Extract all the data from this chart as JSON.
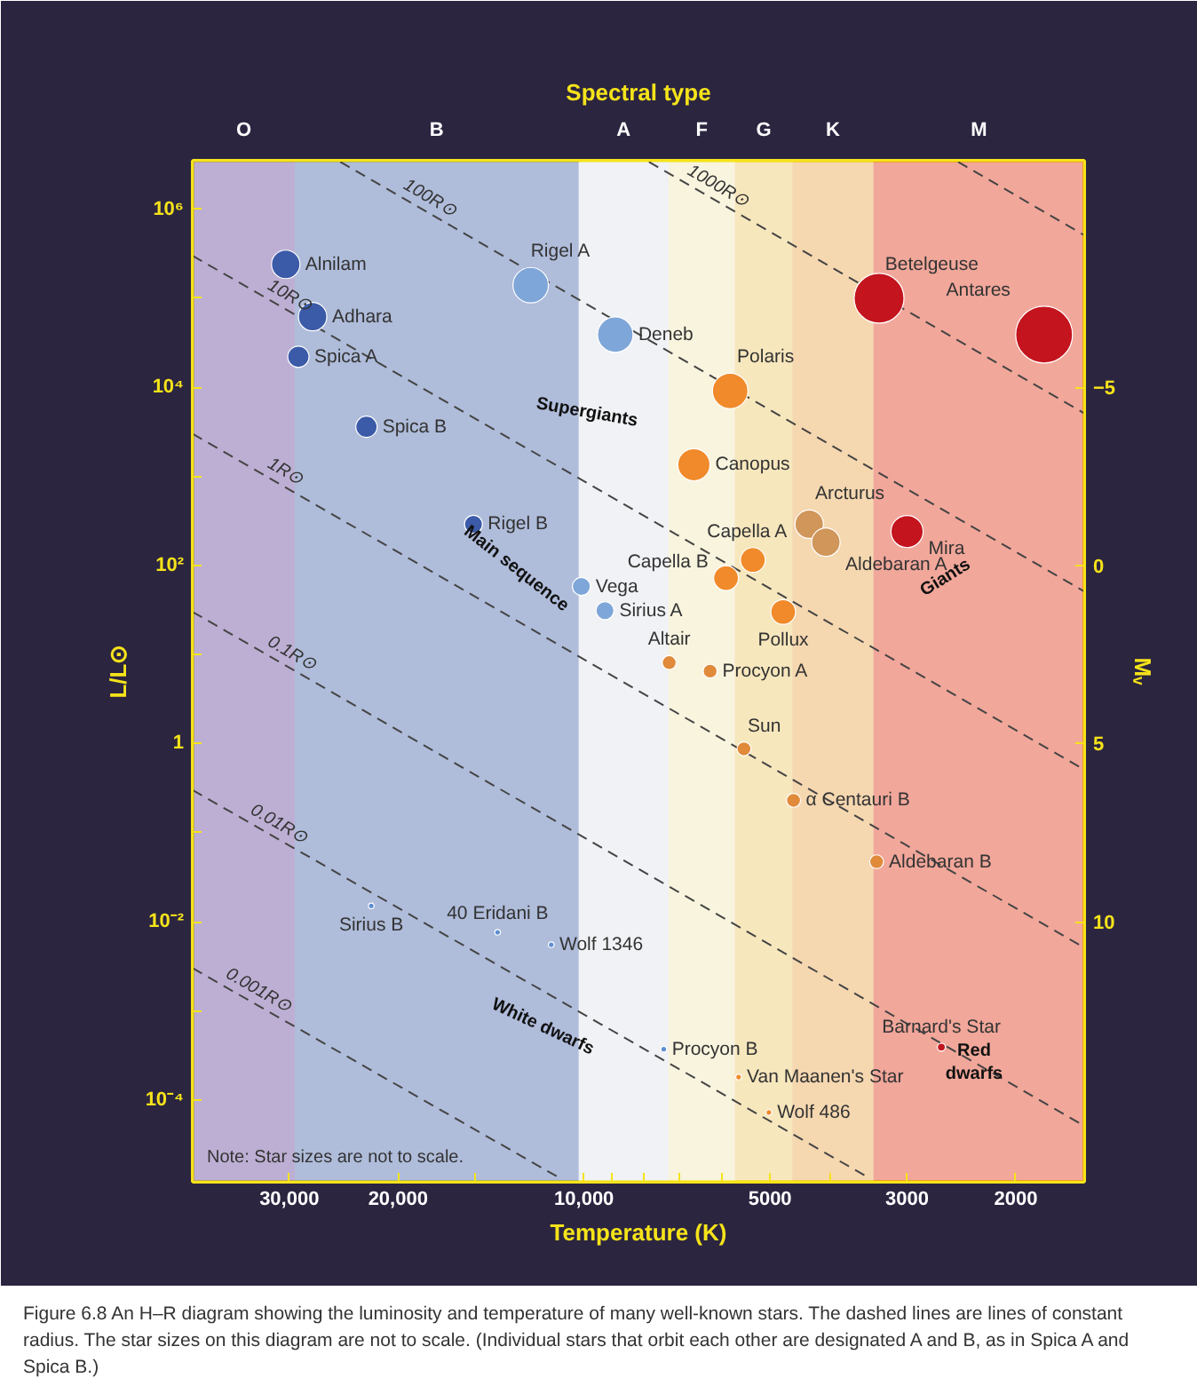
{
  "chart_data": {
    "type": "bubble",
    "x2label": "Spectral type",
    "xlabel": "Temperature (K)",
    "ylabel": "L/L⊙",
    "y2label": "Mᵥ",
    "xlim": [
      43000,
      1550
    ],
    "ylim": [
      1.2e-05,
      3500000.0
    ],
    "y2lim": [
      17.3,
      -11.36
    ],
    "log": "xy",
    "xticks": [
      {
        "value": 30000,
        "label": "30,000"
      },
      {
        "value": 20000,
        "label": "20,000"
      },
      {
        "value": 15000,
        "label": null
      },
      {
        "value": 10000,
        "label": "10,000"
      },
      {
        "value": 9000,
        "label": null
      },
      {
        "value": 8000,
        "label": null
      },
      {
        "value": 7000,
        "label": null
      },
      {
        "value": 6000,
        "label": null
      },
      5000,
      {
        "value": 4000,
        "label": null
      },
      3000,
      2000
    ],
    "yticks": [
      {
        "value": 1000000.0,
        "label": "10⁶"
      },
      {
        "value": 100000.0,
        "label": null
      },
      {
        "value": 10000.0,
        "label": "10⁴"
      },
      {
        "value": 1000.0,
        "label": null
      },
      {
        "value": 100,
        "label": "10²"
      },
      {
        "value": 10,
        "label": null
      },
      1,
      {
        "value": 0.1,
        "label": null
      },
      {
        "value": 0.01,
        "label": "10⁻²"
      },
      {
        "value": 0.001,
        "label": null
      },
      {
        "value": 0.0001,
        "label": "10⁻⁴"
      }
    ],
    "y2ticks": [
      {
        "value": -5,
        "label": "−5"
      },
      0,
      5,
      10
    ],
    "bands": [
      {
        "axis": "x",
        "from": 43000,
        "to": 29400,
        "label": "O",
        "color": "#7a5ca8"
      },
      {
        "axis": "x",
        "from": 29400,
        "to": 10200,
        "label": "B",
        "color": "#5b78b8"
      },
      {
        "axis": "x",
        "from": 10200,
        "to": 7300,
        "label": "A",
        "color": "#eef0f4"
      },
      {
        "axis": "x",
        "from": 7300,
        "to": 5700,
        "label": "F",
        "color": "#fdf3c0"
      },
      {
        "axis": "x",
        "from": 5700,
        "to": 4600,
        "label": "G",
        "color": "#fbd878"
      },
      {
        "axis": "x",
        "from": 4600,
        "to": 3400,
        "label": "K",
        "color": "#f7b45a"
      },
      {
        "axis": "x",
        "from": 3400,
        "to": 1550,
        "label": "M",
        "color": "#ee4a2a"
      }
    ],
    "line_style": "dashed",
    "marker": "circle",
    "grid": false,
    "series": [
      {
        "type": "line",
        "marker": "none",
        "name": "1000R⊙",
        "color": "#444444",
        "x": [
          7850,
          1550
        ],
        "values": [
          3400000.0,
          5100
        ]
      },
      {
        "type": "line",
        "marker": "none",
        "name": "100R⊙",
        "color": "#444444",
        "x": [
          24800,
          1550
        ],
        "values": [
          3400000.0,
          51
        ]
      },
      {
        "type": "line",
        "marker": "none",
        "color": "#444444",
        "x": [
          2480,
          1550
        ],
        "values": [
          3400000.0,
          510000.0
        ]
      },
      {
        "type": "line",
        "marker": "none",
        "name": "10R⊙",
        "color": "#444444",
        "x": [
          43000,
          1550
        ],
        "values": [
          300000.0,
          0.51
        ]
      },
      {
        "type": "line",
        "marker": "none",
        "name": "1R⊙",
        "color": "#444444",
        "x": [
          43000,
          1550
        ],
        "values": [
          3000,
          0.0051
        ]
      },
      {
        "type": "line",
        "marker": "none",
        "name": "0.1R⊙",
        "color": "#444444",
        "x": [
          43000,
          1550
        ],
        "values": [
          30,
          5.1e-05
        ]
      },
      {
        "type": "line",
        "marker": "none",
        "name": "0.01R⊙",
        "color": "#444444",
        "x": [
          43000,
          3440
        ],
        "values": [
          0.3,
          1.3e-05
        ]
      },
      {
        "type": "line",
        "marker": "none",
        "name": "0.001R⊙",
        "color": "#444444",
        "x": [
          43000,
          10900
        ],
        "values": [
          0.003,
          1.3e-05
        ]
      },
      {
        "name": "Alnilam",
        "color": "#3b5aa8",
        "x": [
          30400
        ],
        "values": [
          240000.0
        ],
        "sizes": [
          0.25
        ]
      },
      {
        "name": "Adhara",
        "color": "#3b5aa8",
        "x": [
          27500
        ],
        "values": [
          62000.0
        ],
        "sizes": [
          0.25
        ]
      },
      {
        "name": "Spica A",
        "color": "#3b5aa8",
        "x": [
          29000
        ],
        "values": [
          22000.0
        ],
        "sizes": [
          0.14
        ]
      },
      {
        "name": "Spica B",
        "color": "#3b5aa8",
        "x": [
          22500
        ],
        "values": [
          3600
        ],
        "sizes": [
          0.14
        ]
      },
      {
        "name": "Rigel A",
        "color": "#7fa6d8",
        "x": [
          12200
        ],
        "values": [
          140000.0
        ],
        "sizes": [
          0.39
        ]
      },
      {
        "name": "Deneb",
        "color": "#7fa6d8",
        "x": [
          8900
        ],
        "values": [
          39000.0
        ],
        "sizes": [
          0.39
        ]
      },
      {
        "name": "Betelgeuse",
        "color": "#c4141e",
        "x": [
          3330
        ],
        "values": [
          100000.0
        ],
        "sizes": [
          0.77
        ]
      },
      {
        "name": "Antares",
        "color": "#c4141e",
        "x": [
          1800
        ],
        "values": [
          39000.0
        ],
        "sizes": [
          1
        ]
      },
      {
        "name": "Polaris",
        "color": "#f08a2a",
        "x": [
          5800
        ],
        "values": [
          9100
        ],
        "sizes": [
          0.39
        ]
      },
      {
        "name": "Canopus",
        "color": "#f08a2a",
        "x": [
          6640
        ],
        "values": [
          1350
        ],
        "sizes": [
          0.32
        ]
      },
      {
        "name": "Rigel B",
        "color": "#3b5aa8",
        "x": [
          15100
        ],
        "values": [
          290
        ],
        "sizes": [
          0.1
        ]
      },
      {
        "name": "Arcturus",
        "color": "#d0965a",
        "x": [
          4320
        ],
        "values": [
          290
        ],
        "sizes": [
          0.25
        ]
      },
      {
        "name": "Aldebaran A",
        "color": "#d0965a",
        "x": [
          4060
        ],
        "values": [
          182
        ],
        "sizes": [
          0.25
        ]
      },
      {
        "name": "Mira",
        "color": "#c4141e",
        "x": [
          3000
        ],
        "values": [
          240
        ],
        "sizes": [
          0.32
        ]
      },
      {
        "name": "Capella A",
        "color": "#f08a2a",
        "x": [
          5330
        ],
        "values": [
          115
        ],
        "sizes": [
          0.19
        ]
      },
      {
        "name": "Capella B",
        "color": "#f08a2a",
        "x": [
          5890
        ],
        "values": [
          72
        ],
        "sizes": [
          0.19
        ]
      },
      {
        "name": "Vega",
        "color": "#7fa6d8",
        "x": [
          10100
        ],
        "values": [
          58
        ],
        "sizes": [
          0.1
        ]
      },
      {
        "name": "Sirius A",
        "color": "#7fa6d8",
        "x": [
          9250
        ],
        "values": [
          31
        ],
        "sizes": [
          0.1
        ]
      },
      {
        "name": "Pollux",
        "color": "#f08a2a",
        "x": [
          4760
        ],
        "values": [
          30
        ],
        "sizes": [
          0.19
        ]
      },
      {
        "name": "Altair",
        "color": "#e08a3a",
        "x": [
          7280
        ],
        "values": [
          8.1
        ],
        "sizes": [
          0.06
        ]
      },
      {
        "name": "Procyon A",
        "color": "#e08a3a",
        "x": [
          6250
        ],
        "values": [
          6.5
        ],
        "sizes": [
          0.06
        ]
      },
      {
        "name": "Sun",
        "color": "#e08a3a",
        "x": [
          5510
        ],
        "values": [
          0.87
        ],
        "sizes": [
          0.06
        ]
      },
      {
        "name": "α Centauri B",
        "color": "#e08a3a",
        "x": [
          4580
        ],
        "values": [
          0.23
        ],
        "sizes": [
          0.06
        ]
      },
      {
        "name": "Aldebaran B",
        "color": "#e08a3a",
        "x": [
          3360
        ],
        "values": [
          0.047
        ],
        "sizes": [
          0.06
        ]
      },
      {
        "name": "Sirius B",
        "color": "#5f8fd0",
        "x": [
          22100
        ],
        "values": [
          0.015
        ],
        "sizes": [
          0.01
        ]
      },
      {
        "name": "40 Eridani B",
        "color": "#5f8fd0",
        "x": [
          13800
        ],
        "values": [
          0.0076
        ],
        "sizes": [
          0.01
        ]
      },
      {
        "name": "Wolf 1346",
        "color": "#5f8fd0",
        "x": [
          11300
        ],
        "values": [
          0.0055
        ],
        "sizes": [
          0.01
        ]
      },
      {
        "name": "Procyon B",
        "color": "#5f8fd0",
        "x": [
          7430
        ],
        "values": [
          0.00037
        ],
        "sizes": [
          0.01
        ]
      },
      {
        "name": "Van Maanen's Star",
        "color": "#f08a2a",
        "x": [
          5620
        ],
        "values": [
          0.00018
        ],
        "sizes": [
          0.01
        ]
      },
      {
        "name": "Wolf 486",
        "color": "#f08a2a",
        "x": [
          5020
        ],
        "values": [
          7.2e-05
        ],
        "sizes": [
          0.01
        ]
      },
      {
        "name": "Barnard's Star",
        "color": "#c4141e",
        "x": [
          2640
        ],
        "values": [
          0.00039
        ],
        "sizes": [
          0.02
        ]
      }
    ],
    "annotations": [
      "Supergiants",
      "Main sequence",
      "Giants",
      "White dwarfs",
      "Red\ndwarfs",
      "Note: Star sizes are not to scale.",
      "Figure 6.8 An H–R diagram showing the luminosity and temperature of many well-known stars. The dashed lines are lines of constant radius. The star sizes on this diagram are not to scale. (Individual stars that orbit each other are designated A and B, as in Spica A and Spica B.)"
    ]
  }
}
